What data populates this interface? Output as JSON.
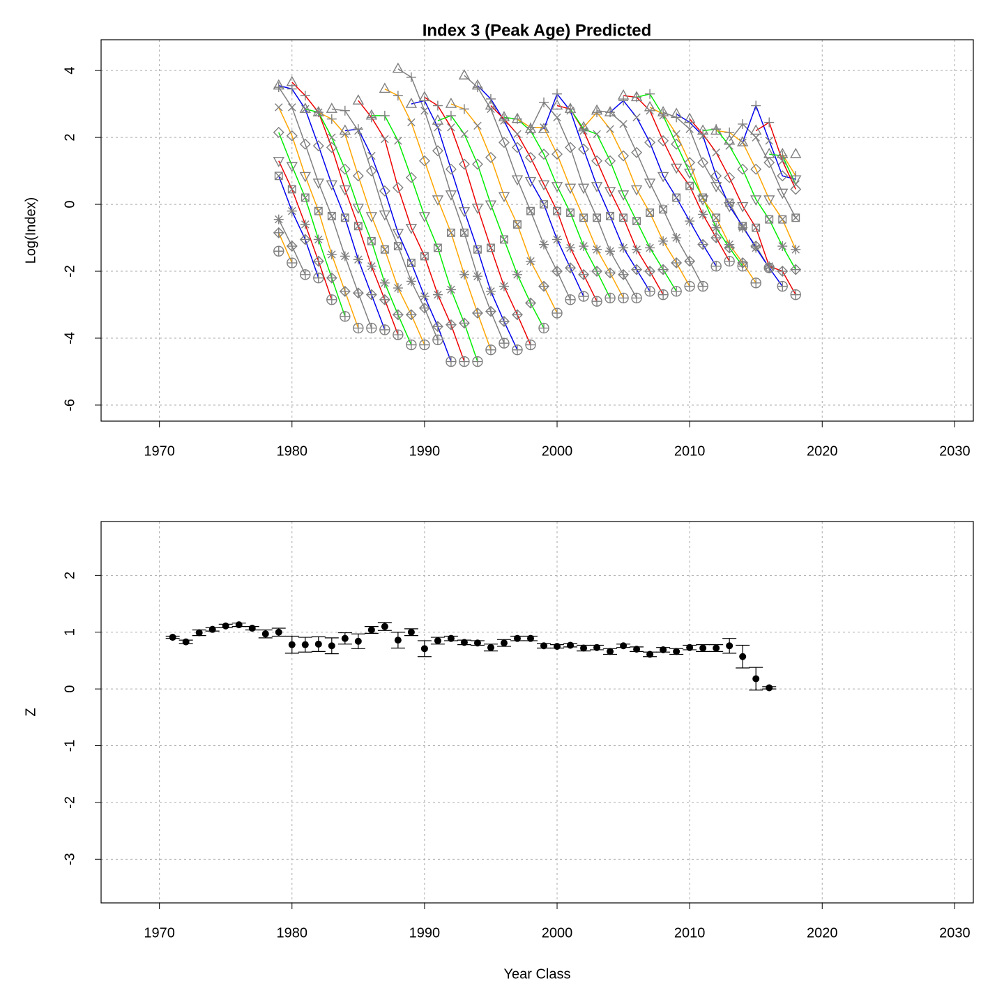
{
  "chart_data": [
    {
      "type": "line",
      "title": "Index 3 (Peak Age) Predicted",
      "ylabel": "Log(Index)",
      "x": [
        1979,
        1980,
        1981,
        1982,
        1983,
        1984,
        1985,
        1986,
        1987,
        1988,
        1989,
        1990,
        1991,
        1992,
        1993,
        1994,
        1995,
        1996,
        1997,
        1998,
        1999,
        2000,
        2001,
        2002,
        2003,
        2004,
        2005,
        2006,
        2007,
        2008,
        2009,
        2010,
        2011,
        2012,
        2013,
        2014,
        2015,
        2016,
        2017,
        2018
      ],
      "marker_color": "#7f7f7f",
      "cohort_colors": [
        "#00ee00",
        "#ffa500",
        "#7f7f7f",
        "#0000ee",
        "#ee0000"
      ],
      "series": [
        {
          "symbol": "triangle",
          "values": [
            3.55,
            3.65,
            2.85,
            2.75,
            2.85,
            2.2,
            3.1,
            2.65,
            3.45,
            4.05,
            3.0,
            3.2,
            2.5,
            3.0,
            3.85,
            3.55,
            2.95,
            2.6,
            2.55,
            2.25,
            2.25,
            2.95,
            2.85,
            2.3,
            2.8,
            2.75,
            3.25,
            3.2,
            2.9,
            2.75,
            2.7,
            2.55,
            2.2,
            2.2,
            1.9,
            1.85,
            2.2,
            1.5,
            1.5,
            1.5
          ]
        },
        {
          "symbol": "plus",
          "values": [
            3.5,
            3.45,
            3.25,
            2.75,
            2.55,
            2.8,
            2.25,
            2.6,
            2.65,
            3.25,
            3.8,
            3.1,
            2.95,
            2.65,
            2.85,
            3.5,
            3.15,
            2.55,
            2.55,
            2.3,
            3.05,
            3.3,
            2.85,
            2.25,
            2.75,
            2.75,
            3.1,
            3.2,
            3.3,
            2.7,
            2.6,
            2.45,
            2.1,
            2.25,
            2.15,
            2.4,
            2.95,
            2.45,
            1.45,
            0.85
          ]
        },
        {
          "symbol": "cross",
          "values": [
            2.9,
            2.9,
            2.85,
            2.75,
            2.0,
            2.1,
            2.2,
            1.45,
            1.95,
            1.9,
            2.45,
            2.8,
            2.3,
            2.3,
            2.1,
            2.35,
            2.85,
            2.5,
            2.1,
            2.2,
            2.3,
            2.6,
            2.8,
            2.2,
            2.1,
            2.25,
            2.4,
            2.6,
            2.8,
            2.65,
            2.1,
            2.25,
            2.05,
            1.55,
            1.75,
            1.85,
            2.0,
            1.9,
            1.3,
            0.6
          ]
        },
        {
          "symbol": "diamond",
          "values": [
            2.15,
            2.05,
            1.8,
            1.75,
            1.7,
            1.05,
            0.85,
            1.0,
            0.4,
            0.5,
            0.8,
            1.3,
            1.6,
            1.05,
            1.2,
            1.2,
            1.4,
            1.85,
            1.7,
            1.4,
            1.5,
            1.5,
            1.7,
            1.65,
            1.3,
            1.3,
            1.45,
            1.55,
            1.85,
            1.9,
            1.8,
            1.25,
            1.25,
            0.85,
            0.8,
            1.05,
            1.05,
            1.25,
            0.85,
            0.45
          ]
        },
        {
          "symbol": "triangle-down",
          "values": [
            1.3,
            1.15,
            0.85,
            0.65,
            0.6,
            0.45,
            -0.1,
            -0.35,
            -0.3,
            -0.85,
            -0.7,
            -0.35,
            0.15,
            0.3,
            -0.2,
            -0.1,
            0.0,
            0.25,
            0.75,
            0.7,
            0.6,
            0.55,
            0.5,
            0.5,
            0.55,
            0.4,
            0.3,
            0.45,
            0.65,
            0.85,
            1.1,
            0.95,
            0.15,
            0.55,
            -0.05,
            -0.05,
            0.15,
            0.15,
            0.35,
            0.75
          ]
        },
        {
          "symbol": "square-cross",
          "values": [
            0.85,
            0.45,
            0.2,
            -0.2,
            -0.35,
            -0.4,
            -0.65,
            -1.1,
            -1.35,
            -1.25,
            -1.75,
            -1.55,
            -1.3,
            -0.85,
            -0.85,
            -1.35,
            -1.3,
            -1.05,
            -0.6,
            -0.2,
            0.0,
            -0.2,
            -0.25,
            -0.4,
            -0.4,
            -0.35,
            -0.4,
            -0.5,
            -0.25,
            -0.15,
            0.2,
            0.55,
            0.2,
            -0.4,
            0.05,
            -0.65,
            -0.7,
            -0.45,
            -0.45,
            -0.4
          ]
        },
        {
          "symbol": "asterisk",
          "values": [
            -0.45,
            -0.2,
            -0.6,
            -1.05,
            -1.5,
            -1.55,
            -1.65,
            -1.85,
            -2.35,
            -2.5,
            -2.3,
            -2.75,
            -2.7,
            -2.55,
            -2.1,
            -2.15,
            -2.6,
            -2.45,
            -2.1,
            -1.7,
            -1.2,
            -1.05,
            -1.3,
            -1.25,
            -1.35,
            -1.4,
            -1.3,
            -1.35,
            -1.3,
            -1.1,
            -1.0,
            -0.5,
            -0.3,
            -0.7,
            -1.2,
            -0.7,
            -1.3,
            -1.85,
            -1.25,
            -1.35
          ]
        },
        {
          "symbol": "diamond-plus",
          "values": [
            -0.85,
            -1.25,
            -1.05,
            -1.7,
            -2.2,
            -2.6,
            -2.65,
            -2.7,
            -2.85,
            -3.3,
            -3.3,
            -3.1,
            -3.65,
            -3.6,
            -3.55,
            -3.25,
            -3.2,
            -3.5,
            -3.3,
            -2.95,
            -2.45,
            -2.0,
            -1.9,
            -2.1,
            -2.0,
            -2.05,
            -2.1,
            -1.95,
            -2.0,
            -1.95,
            -1.75,
            -1.7,
            -1.2,
            -1.0,
            -1.3,
            -1.75,
            -1.25,
            -1.9,
            -2.0,
            -1.95
          ]
        },
        {
          "symbol": "circle-plus",
          "values": [
            -1.4,
            -1.75,
            -2.1,
            -2.2,
            -2.85,
            -3.35,
            -3.7,
            -3.7,
            -3.75,
            -3.9,
            -4.2,
            -4.2,
            -4.05,
            -4.7,
            -4.7,
            -4.7,
            -4.35,
            -4.15,
            -4.35,
            -4.2,
            -3.7,
            -3.25,
            -2.85,
            -2.75,
            -2.9,
            -2.8,
            -2.8,
            -2.8,
            -2.6,
            -2.7,
            -2.6,
            -2.45,
            -2.45,
            -1.85,
            -1.7,
            -1.85,
            -2.35,
            -1.9,
            -2.45,
            -2.7
          ]
        }
      ],
      "xlim": [
        1965.6,
        2031.4
      ],
      "ylim": [
        -6.48,
        4.92
      ],
      "xticks": [
        1970,
        1980,
        1990,
        2000,
        2010,
        2020,
        2030
      ],
      "yticks": [
        -6,
        -4,
        -2,
        0,
        2,
        4
      ],
      "grid": true
    },
    {
      "type": "scatter",
      "xlabel": "Year Class",
      "ylabel": "Z",
      "color": "#000000",
      "x": [
        1971,
        1972,
        1973,
        1974,
        1975,
        1976,
        1977,
        1978,
        1979,
        1980,
        1981,
        1982,
        1983,
        1984,
        1985,
        1986,
        1987,
        1988,
        1989,
        1990,
        1991,
        1992,
        1993,
        1994,
        1995,
        1996,
        1997,
        1998,
        1999,
        2000,
        2001,
        2002,
        2003,
        2004,
        2005,
        2006,
        2007,
        2008,
        2009,
        2010,
        2011,
        2012,
        2013,
        2014,
        2015,
        2016
      ],
      "values": [
        0.91,
        0.83,
        0.99,
        1.05,
        1.11,
        1.13,
        1.07,
        0.97,
        1.0,
        0.78,
        0.78,
        0.79,
        0.76,
        0.89,
        0.84,
        1.04,
        1.1,
        0.86,
        1.0,
        0.71,
        0.85,
        0.89,
        0.82,
        0.81,
        0.73,
        0.81,
        0.89,
        0.89,
        0.76,
        0.75,
        0.77,
        0.72,
        0.73,
        0.66,
        0.76,
        0.7,
        0.61,
        0.69,
        0.66,
        0.73,
        0.72,
        0.72,
        0.76,
        0.57,
        0.18,
        0.02
      ],
      "errors": [
        0.02,
        0.03,
        0.05,
        0.03,
        0.03,
        0.03,
        0.03,
        0.07,
        0.07,
        0.15,
        0.13,
        0.13,
        0.14,
        0.1,
        0.13,
        0.06,
        0.07,
        0.14,
        0.06,
        0.14,
        0.06,
        0.04,
        0.04,
        0.04,
        0.06,
        0.06,
        0.04,
        0.04,
        0.04,
        0.03,
        0.03,
        0.05,
        0.04,
        0.05,
        0.03,
        0.04,
        0.04,
        0.04,
        0.05,
        0.04,
        0.06,
        0.06,
        0.13,
        0.2,
        0.2,
        0.02
      ],
      "xlim": [
        1965.6,
        2031.4
      ],
      "ylim": [
        -3.77,
        2.95
      ],
      "xticks": [
        1970,
        1980,
        1990,
        2000,
        2010,
        2020,
        2030
      ],
      "yticks": [
        -3,
        -2,
        -1,
        0,
        1,
        2
      ],
      "grid": true
    }
  ]
}
